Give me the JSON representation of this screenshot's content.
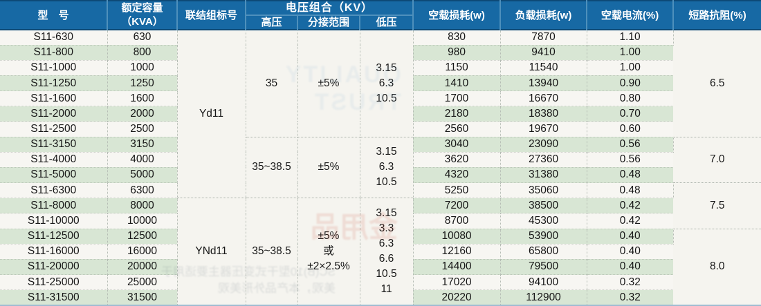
{
  "table": {
    "header": {
      "col_model": "型　号",
      "col_capacity_line1": "额定容量",
      "col_capacity_line2": "（KVA）",
      "col_vector_group": "联结组标号",
      "col_voltage_group": "电压组合（KV）",
      "col_hv": "高压",
      "col_tap_range": "分接范围",
      "col_lv": "低压",
      "col_no_load_loss": "空载损耗(w)",
      "col_load_loss": "负载损耗(w)",
      "col_no_load_current": "空载电流(%)",
      "col_impedance": "短路抗阻(%)"
    },
    "rows": [
      {
        "model": "S11-630",
        "kva": "630",
        "p0": "830",
        "pk": "7870",
        "i0": "1.10"
      },
      {
        "model": "S11-800",
        "kva": "800",
        "p0": "980",
        "pk": "9410",
        "i0": "1.00"
      },
      {
        "model": "S11-1000",
        "kva": "1000",
        "p0": "1150",
        "pk": "11540",
        "i0": "1.00"
      },
      {
        "model": "S11-1250",
        "kva": "1250",
        "p0": "1410",
        "pk": "13940",
        "i0": "0.90"
      },
      {
        "model": "S11-1600",
        "kva": "1600",
        "p0": "1700",
        "pk": "16670",
        "i0": "0.80"
      },
      {
        "model": "S11-2000",
        "kva": "2000",
        "p0": "2180",
        "pk": "18380",
        "i0": "0.70"
      },
      {
        "model": "S11-2500",
        "kva": "2500",
        "p0": "2560",
        "pk": "19670",
        "i0": "0.60"
      },
      {
        "model": "S11-3150",
        "kva": "3150",
        "p0": "3040",
        "pk": "23090",
        "i0": "0.56"
      },
      {
        "model": "S11-4000",
        "kva": "4000",
        "p0": "3620",
        "pk": "27360",
        "i0": "0.56"
      },
      {
        "model": "S11-5000",
        "kva": "5000",
        "p0": "4320",
        "pk": "31380",
        "i0": "0.48"
      },
      {
        "model": "S11-6300",
        "kva": "6300",
        "p0": "5250",
        "pk": "35060",
        "i0": "0.48"
      },
      {
        "model": "S11-8000",
        "kva": "8000",
        "p0": "7200",
        "pk": "38500",
        "i0": "0.42"
      },
      {
        "model": "S11-10000",
        "kva": "10000",
        "p0": "8700",
        "pk": "45300",
        "i0": "0.42"
      },
      {
        "model": "S11-12500",
        "kva": "12500",
        "p0": "10080",
        "pk": "53900",
        "i0": "0.40"
      },
      {
        "model": "S11-16000",
        "kva": "16000",
        "p0": "12160",
        "pk": "65800",
        "i0": "0.40"
      },
      {
        "model": "S11-20000",
        "kva": "20000",
        "p0": "14400",
        "pk": "79500",
        "i0": "0.40"
      },
      {
        "model": "S11-25000",
        "kva": "25000",
        "p0": "17020",
        "pk": "94100",
        "i0": "0.32"
      },
      {
        "model": "S11-31500",
        "kva": "31500",
        "p0": "20220",
        "pk": "112900",
        "i0": "0.32"
      }
    ],
    "merged": {
      "vector_groups": [
        {
          "label": "Yd11",
          "span": 11
        },
        {
          "label": "YNd11",
          "span": 7
        }
      ],
      "hv": [
        {
          "label": "35",
          "span": 7
        },
        {
          "label": "35~38.5",
          "span": 4
        },
        {
          "label": "35~38.5",
          "span": 7
        }
      ],
      "tap": [
        {
          "lines": [
            "±5%"
          ],
          "span": 7
        },
        {
          "lines": [
            "±5%"
          ],
          "span": 4
        },
        {
          "lines": [
            "±5%",
            "或",
            "±2×2.5%"
          ],
          "span": 7
        }
      ],
      "lv": [
        {
          "lines": [
            "3.15",
            "6.3",
            "10.5"
          ],
          "span": 7
        },
        {
          "lines": [
            "3.15",
            "6.3",
            "10.5"
          ],
          "span": 4
        },
        {
          "lines": [
            "3.15",
            "3.3",
            "6.3",
            "6.6",
            "10.5",
            "11"
          ],
          "span": 7
        }
      ],
      "impedance": [
        {
          "label": "6.5",
          "span": 7
        },
        {
          "label": "7.0",
          "span": 3
        },
        {
          "label": "7.5",
          "span": 3
        },
        {
          "label": "8.0",
          "span": 5
        }
      ]
    }
  },
  "colors": {
    "header_bg": "#1769a4",
    "header_separator": "#4e90bc",
    "header_top_rule": "#0d4a77",
    "stripe_green": "#d8e6d4",
    "row_white": "#f7f6f2",
    "merged_cell_bg": "#f5f4ef",
    "body_text": "#161616",
    "grid_dotted": "#b5bcb4"
  },
  "scan_artifacts": {
    "ghost_en": "QUALITY\nTRUST",
    "ghost_red": "金用品",
    "ghost_cn": "SC(B)10型干式变压器主要适用于\n美观，本产品外形美观"
  }
}
